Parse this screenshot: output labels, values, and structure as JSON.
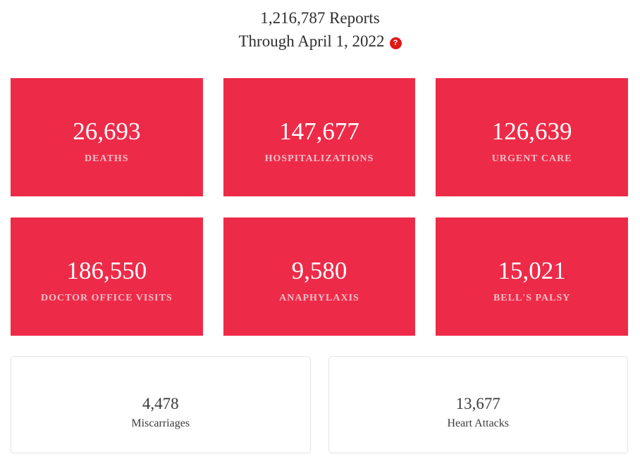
{
  "header": {
    "title_line1": "1,216,787 Reports",
    "title_line2": "Through April 1, 2022",
    "help_icon_glyph": "?"
  },
  "colors": {
    "tile_red": "#ed2b48",
    "tile_label_pink": "#f2bfc9",
    "help_badge_red": "#e01717",
    "text_dark": "#2e2e2e"
  },
  "stat_cards": [
    {
      "value": "26,693",
      "label": "DEATHS"
    },
    {
      "value": "147,677",
      "label": "HOSPITALIZATIONS"
    },
    {
      "value": "126,639",
      "label": "URGENT CARE"
    },
    {
      "value": "186,550",
      "label": "DOCTOR OFFICE VISITS"
    },
    {
      "value": "9,580",
      "label": "ANAPHYLAXIS"
    },
    {
      "value": "15,021",
      "label": "BELL'S PALSY"
    }
  ],
  "secondary_cards": [
    {
      "value": "4,478",
      "label": "Miscarriages"
    },
    {
      "value": "13,677",
      "label": "Heart Attacks"
    }
  ]
}
